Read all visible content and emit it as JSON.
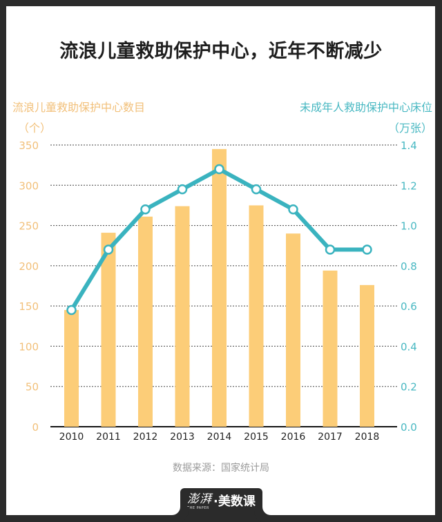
{
  "title": "流浪儿童救助保护中心，近年不断减少",
  "left_axis": {
    "title": "流浪儿童救助保护中心数目",
    "unit": "（个）",
    "color": "#f2c07a"
  },
  "right_axis": {
    "title": "未成年人救助保护中心床位",
    "unit": "（万张）",
    "color": "#48b8c2"
  },
  "source": "数据来源：国家统计局",
  "logo": {
    "brand": "澎湃",
    "brand_sub": "THE PAPER",
    "name": "·美数课"
  },
  "chart_data": {
    "type": "bar+line",
    "title": "流浪儿童救助保护中心，近年不断减少",
    "categories": [
      "2010",
      "2011",
      "2012",
      "2013",
      "2014",
      "2015",
      "2016",
      "2017",
      "2018"
    ],
    "series": [
      {
        "name": "流浪儿童救助保护中心数目",
        "type": "bar",
        "axis": "left",
        "unit": "个",
        "color": "#fccd78",
        "values": [
          145,
          241,
          261,
          274,
          345,
          275,
          240,
          194,
          176
        ]
      },
      {
        "name": "未成年人救助保护中心床位",
        "type": "line",
        "axis": "right",
        "unit": "万张",
        "color": "#3ab3bf",
        "values": [
          0.58,
          0.88,
          1.08,
          1.18,
          1.28,
          1.18,
          1.08,
          0.88,
          0.88
        ]
      }
    ],
    "y_left": {
      "label": "流浪儿童救助保护中心数目（个）",
      "ylim": [
        0,
        350
      ],
      "ticks": [
        "0",
        "50",
        "100",
        "150",
        "200",
        "250",
        "300",
        "350"
      ]
    },
    "y_right": {
      "label": "未成年人救助保护中心床位（万张）",
      "ylim": [
        0,
        1.4
      ],
      "ticks": [
        "0.0",
        "0.2",
        "0.4",
        "0.6",
        "0.8",
        "1.0",
        "1.2",
        "1.4"
      ]
    },
    "grid": true,
    "legend": "none"
  }
}
